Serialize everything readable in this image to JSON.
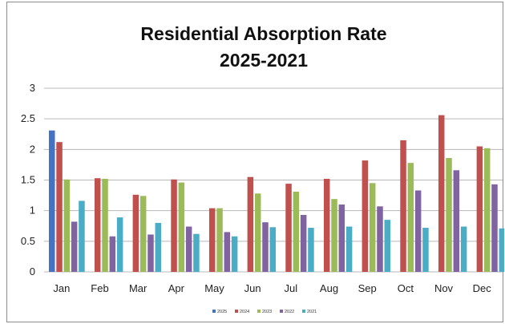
{
  "chart_data": {
    "type": "bar",
    "title": "Residential Absorption Rate",
    "subtitle": "2025-2021",
    "categories": [
      "Jan",
      "Feb",
      "Mar",
      "Apr",
      "May",
      "Jun",
      "Jul",
      "Aug",
      "Sep",
      "Oct",
      "Nov",
      "Dec"
    ],
    "series": [
      {
        "name": "2025",
        "color": "#4472c4",
        "values": [
          2.31,
          null,
          null,
          null,
          null,
          null,
          null,
          null,
          null,
          null,
          null,
          null
        ]
      },
      {
        "name": "2024",
        "color": "#c0504d",
        "values": [
          2.12,
          1.53,
          1.26,
          1.51,
          1.04,
          1.55,
          1.44,
          1.52,
          1.82,
          2.15,
          2.56,
          2.05
        ]
      },
      {
        "name": "2023",
        "color": "#9bbb59",
        "values": [
          1.51,
          1.52,
          1.24,
          1.46,
          1.04,
          1.28,
          1.31,
          1.19,
          1.45,
          1.78,
          1.86,
          2.02
        ]
      },
      {
        "name": "2022",
        "color": "#8064a2",
        "values": [
          0.82,
          0.58,
          0.61,
          0.74,
          0.65,
          0.81,
          0.93,
          1.1,
          1.07,
          1.33,
          1.66,
          1.43
        ]
      },
      {
        "name": "2021",
        "color": "#4bacc6",
        "values": [
          1.16,
          0.89,
          0.8,
          0.62,
          0.58,
          0.73,
          0.72,
          0.74,
          0.85,
          0.72,
          0.74,
          0.71
        ]
      }
    ],
    "y_ticks": [
      "0",
      "0.5",
      "1",
      "1.5",
      "2",
      "2.5",
      "3"
    ],
    "ylim": [
      0,
      3
    ],
    "grid": true,
    "legend_position": "bottom"
  }
}
